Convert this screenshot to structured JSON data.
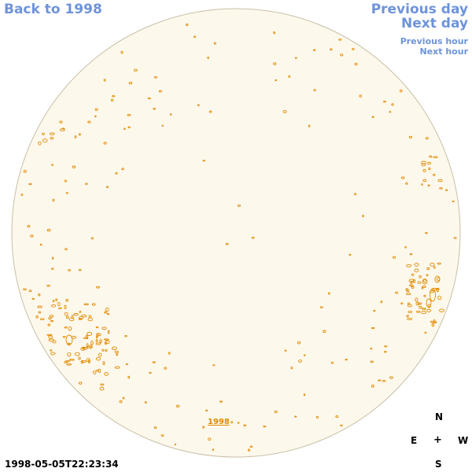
{
  "nav": {
    "back": "Back to 1998",
    "previous_day": "Previous day",
    "next_day": "Next day",
    "previous_hour": "Previous hour",
    "next_hour": "Next hour"
  },
  "timestamp": "1998-05-05T22:23:34",
  "year_label": "1998",
  "compass": {
    "north": "N",
    "east": "E",
    "center": "+",
    "west": "W",
    "south": "S"
  },
  "colors": {
    "link": "#6e93db",
    "disk_fill": "#fdf8ec",
    "disk_stroke": "#c9bfa6",
    "contour": "#e08a00"
  },
  "icons": {
    "compass_center": "plus-icon"
  }
}
